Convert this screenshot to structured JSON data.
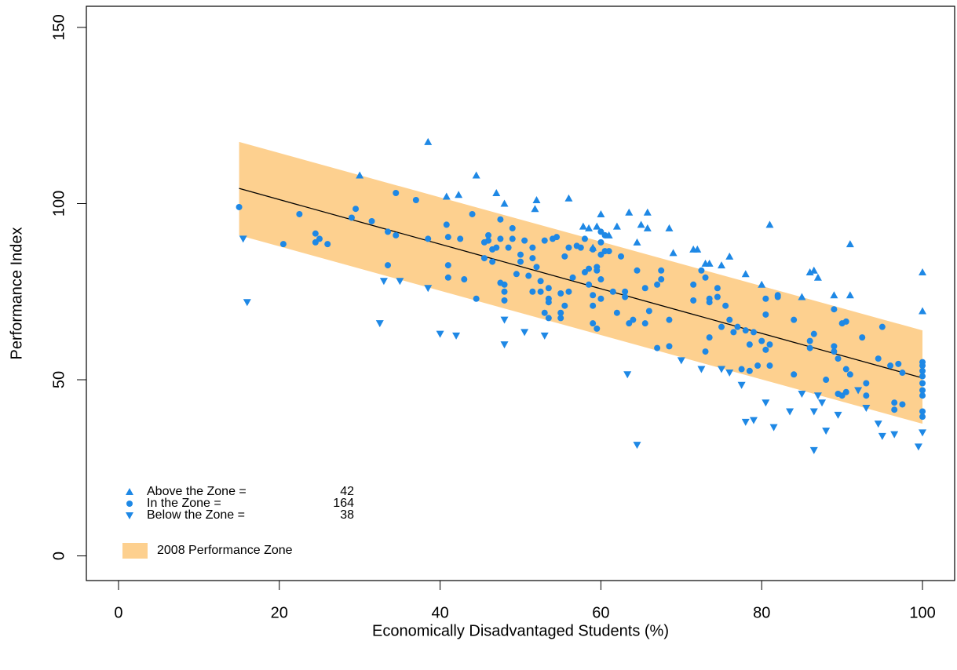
{
  "chart_data": {
    "type": "scatter",
    "x_label": "Economically Disadvantaged Students (%)",
    "y_label": "Performance Index",
    "xlim": [
      -4,
      104
    ],
    "ylim": [
      -7,
      156
    ],
    "xticks": [
      0,
      20,
      40,
      60,
      80,
      100
    ],
    "yticks": [
      0,
      50,
      100,
      150
    ],
    "legend": "bottom-left",
    "zone": {
      "name": "2008 Performance Zone",
      "color": "#fdd08f",
      "x": [
        15,
        100
      ],
      "upper": [
        117.5,
        64
      ],
      "lower": [
        91,
        37.5
      ],
      "fit": [
        104.3,
        50.5
      ],
      "fit_color": "#000000"
    },
    "series": [
      {
        "name": "Above the Zone =",
        "count": 42,
        "marker": "triangle-up",
        "color": "#1e88e5",
        "x": [
          38.5,
          30,
          44.5,
          40.8,
          42.3,
          47,
          48,
          51.8,
          52,
          56,
          60,
          63.5,
          65.8,
          65,
          57.8,
          59.5,
          61,
          68.5,
          69,
          72,
          73,
          76,
          80,
          81,
          86.5,
          87,
          89,
          91,
          91,
          100,
          100,
          62,
          59,
          64.5,
          73.5,
          75,
          65.8,
          58.5,
          71.5,
          86,
          85,
          78
        ],
        "values": [
          117.5,
          108,
          108,
          102,
          102.5,
          103,
          100,
          98.5,
          101,
          101.5,
          97,
          97.5,
          97.5,
          94,
          93.5,
          93.5,
          91,
          93,
          86,
          87,
          83,
          85,
          77,
          94,
          81,
          79,
          74,
          88.5,
          74,
          80.5,
          69.5,
          93.5,
          87.5,
          89,
          83,
          82.5,
          93,
          93,
          87,
          80.5,
          73.5,
          80
        ]
      },
      {
        "name": "In the Zone =",
        "count": 164,
        "marker": "circle",
        "color": "#1e88e5",
        "x": [
          15,
          20.5,
          22.5,
          24.5,
          25,
          24.5,
          26,
          29,
          29.5,
          31.5,
          33.5,
          33.5,
          34.5,
          34.5,
          37,
          38.5,
          40.8,
          41,
          41,
          41,
          42.5,
          43,
          44,
          44.5,
          45.5,
          45.5,
          46,
          46,
          46.5,
          46.5,
          47,
          47.5,
          47.5,
          47.5,
          48,
          48,
          48,
          48.5,
          49,
          49,
          49.5,
          50,
          50,
          50.5,
          51,
          51.5,
          51.5,
          51.5,
          52,
          52.5,
          52.5,
          53,
          53,
          53.5,
          53.5,
          53.5,
          53.5,
          54,
          54.5,
          55,
          55,
          55,
          55.5,
          55.5,
          56,
          56,
          56.5,
          57,
          57.5,
          58,
          58,
          58.5,
          58.5,
          59,
          59,
          59,
          59,
          59.5,
          59.5,
          59.5,
          60,
          60,
          60,
          60,
          60,
          60.5,
          60.5,
          61,
          61.5,
          62,
          62.5,
          63,
          63,
          63.5,
          64,
          64.5,
          65.5,
          65.5,
          66,
          67,
          67.5,
          67.5,
          68.5,
          68.5,
          67,
          71.5,
          71.5,
          72.5,
          73,
          73.5,
          73.5,
          73,
          73.5,
          74.5,
          74.5,
          75,
          75.5,
          76,
          76.5,
          77,
          77.5,
          78,
          78.5,
          78.5,
          79,
          79.5,
          80,
          80.5,
          80.5,
          80.5,
          81,
          81,
          82,
          82,
          84,
          84,
          86,
          86,
          86.5,
          88,
          89,
          89,
          89,
          89.5,
          89.5,
          90,
          90,
          90.5,
          90.5,
          90.5,
          91,
          92.5,
          93,
          93,
          94.5,
          95,
          96,
          96.5,
          96.5,
          97,
          97.5,
          97.5,
          100,
          100,
          100,
          100,
          100,
          100,
          100,
          100,
          100
        ],
        "values": [
          99,
          88.5,
          97,
          91.5,
          90,
          89,
          88.5,
          96,
          98.5,
          95,
          92,
          82.5,
          91,
          103,
          101,
          90,
          94,
          90.5,
          82.5,
          79,
          90,
          78.5,
          97,
          73,
          89,
          84.5,
          91,
          89.5,
          87,
          83.5,
          87.5,
          95.5,
          90,
          77.5,
          75,
          72.5,
          77,
          87.5,
          93,
          90,
          80,
          85.5,
          83.5,
          89.5,
          79.5,
          87.5,
          84.5,
          75,
          82,
          78,
          75,
          89.5,
          69,
          76,
          73,
          72,
          67.5,
          90,
          90.5,
          67.5,
          69,
          74.5,
          71,
          85,
          87.5,
          75,
          79,
          88,
          87.5,
          90,
          80.5,
          81.5,
          77,
          87,
          74,
          71,
          66,
          64.5,
          81,
          82,
          92,
          89,
          85.5,
          78.5,
          73,
          86.5,
          91,
          86.5,
          75,
          69,
          85,
          75,
          73.5,
          66,
          67,
          81,
          66,
          76,
          69.5,
          77,
          78.5,
          81,
          67,
          59.5,
          59,
          77,
          72.5,
          81,
          58,
          73,
          72,
          79,
          62,
          76,
          73.5,
          65,
          71,
          67,
          63.5,
          65,
          53,
          64,
          60,
          52.5,
          63.5,
          54,
          61,
          73,
          68.5,
          58.5,
          54,
          60,
          74,
          73.5,
          51.5,
          67,
          61,
          59,
          63,
          50,
          70,
          59.5,
          58,
          56,
          46,
          45.5,
          66,
          66.5,
          53,
          46.5,
          51.5,
          62,
          49,
          45.5,
          56,
          65,
          54,
          41.5,
          43.5,
          54.5,
          43,
          52,
          55,
          54,
          52.5,
          51,
          49,
          47,
          45.5,
          41,
          39.5
        ]
      },
      {
        "name": "Below the Zone =",
        "count": 38,
        "marker": "triangle-down",
        "color": "#1e88e5",
        "x": [
          15.5,
          16,
          32.5,
          33,
          35,
          38.5,
          40,
          42,
          48,
          48,
          50.5,
          53,
          63.3,
          64.5,
          70,
          72.5,
          75,
          76,
          77.5,
          78,
          79,
          80.5,
          81.5,
          83.5,
          85,
          86.5,
          86.5,
          87.5,
          88,
          89.5,
          93,
          94.5,
          95,
          96.5,
          99.5,
          100,
          87,
          92
        ],
        "values": [
          90,
          72,
          66,
          78,
          78,
          76,
          63,
          62.5,
          67,
          60,
          63.5,
          62.5,
          51.5,
          31.5,
          55.5,
          53,
          53,
          52,
          48.5,
          38,
          38.5,
          43.5,
          36.5,
          41,
          46,
          30,
          41,
          43.5,
          35.5,
          40,
          42,
          37.5,
          34,
          34.5,
          31,
          35,
          45.5,
          47
        ]
      }
    ]
  }
}
